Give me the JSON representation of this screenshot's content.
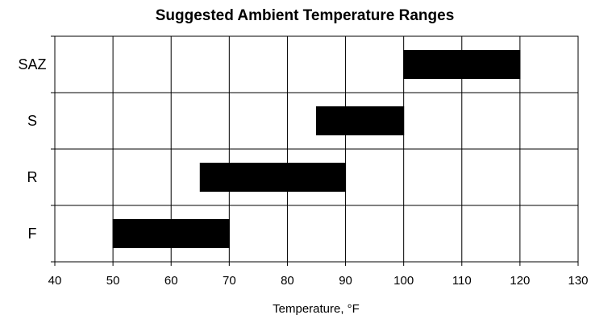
{
  "chart_data": {
    "type": "bar",
    "orientation": "horizontal-range",
    "title": "Suggested Ambient Temperature Ranges",
    "xlabel": "Temperature, °F",
    "ylabel": "",
    "xlim": [
      40,
      130
    ],
    "x_ticks": [
      40,
      50,
      60,
      70,
      80,
      90,
      100,
      110,
      120,
      130
    ],
    "categories": [
      "F",
      "R",
      "S",
      "SAZ"
    ],
    "ranges": [
      {
        "category": "F",
        "low": 50,
        "high": 70
      },
      {
        "category": "R",
        "low": 65,
        "high": 90
      },
      {
        "category": "S",
        "low": 85,
        "high": 100
      },
      {
        "category": "SAZ",
        "low": 100,
        "high": 120
      }
    ],
    "grid": true,
    "legend": "none",
    "bar_color": "#000000"
  }
}
